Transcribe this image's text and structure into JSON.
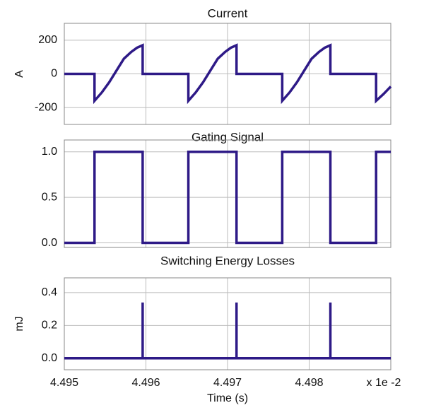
{
  "chart_data": [
    {
      "type": "line",
      "title": "Current",
      "y_label": "A",
      "x": [
        4.495,
        4.49537,
        4.49537,
        4.49546,
        4.49555,
        4.49564,
        4.49573,
        4.49582,
        4.49589,
        4.49596,
        4.49596,
        4.49652,
        4.49652,
        4.49661,
        4.4967,
        4.49679,
        4.49688,
        4.49697,
        4.49704,
        4.49711,
        4.49711,
        4.49767,
        4.49767,
        4.49776,
        4.49785,
        4.49794,
        4.49803,
        4.49812,
        4.49819,
        4.49826,
        4.49826,
        4.49882,
        4.49882,
        4.49891,
        4.499
      ],
      "series": [
        {
          "color": "#2e1a87",
          "values": [
            0,
            0,
            -160,
            -110,
            -50,
            20,
            90,
            130,
            155,
            170,
            0,
            0,
            -160,
            -110,
            -50,
            20,
            90,
            130,
            155,
            170,
            0,
            0,
            -160,
            -110,
            -50,
            20,
            90,
            130,
            155,
            170,
            0,
            0,
            -160,
            -120,
            -75
          ]
        }
      ],
      "xlim": [
        4.495,
        4.499
      ],
      "xticks": [
        4.495,
        4.496,
        4.497,
        4.498
      ],
      "ylim": [
        -300,
        300
      ],
      "yticks": [
        -200,
        0,
        200
      ],
      "grid": true
    },
    {
      "type": "line",
      "title": "Gating Signal",
      "x": [
        4.495,
        4.49537,
        4.49537,
        4.49596,
        4.49596,
        4.49652,
        4.49652,
        4.49711,
        4.49711,
        4.49767,
        4.49767,
        4.49826,
        4.49826,
        4.49882,
        4.49882,
        4.499
      ],
      "series": [
        {
          "color": "#2e1a87",
          "values": [
            0,
            0,
            1,
            1,
            0,
            0,
            1,
            1,
            0,
            0,
            1,
            1,
            0,
            0,
            1,
            1
          ]
        }
      ],
      "xlim": [
        4.495,
        4.499
      ],
      "xticks": [
        4.495,
        4.496,
        4.497,
        4.498
      ],
      "ylim": [
        -0.05,
        1.13
      ],
      "yticks": [
        {
          "value": 0,
          "label": "0.0"
        },
        {
          "value": 0.5,
          "label": "0.5"
        },
        {
          "value": 1,
          "label": "1.0"
        }
      ],
      "grid": true
    },
    {
      "type": "line",
      "title": "Switching Energy Losses",
      "y_label": "mJ",
      "x_label": "Time (s)",
      "x_scale_note": "x 1e -2",
      "x": [
        4.495,
        4.49596,
        4.49596,
        4.49596,
        4.49711,
        4.49711,
        4.49711,
        4.49826,
        4.49826,
        4.49826,
        4.499
      ],
      "series": [
        {
          "color": "#2e1a87",
          "values": [
            0,
            0,
            0.34,
            0,
            0,
            0.34,
            0,
            0,
            0.34,
            0,
            0
          ]
        }
      ],
      "xlim": [
        4.495,
        4.499
      ],
      "xticks": [
        4.495,
        4.496,
        4.497,
        4.498
      ],
      "xtick_labels_shown": true,
      "ylim": [
        -0.07,
        0.49
      ],
      "yticks": [
        {
          "value": 0,
          "label": "0.0"
        },
        {
          "value": 0.2,
          "label": "0.2"
        },
        {
          "value": 0.4,
          "label": "0.4"
        }
      ],
      "grid": true
    }
  ]
}
